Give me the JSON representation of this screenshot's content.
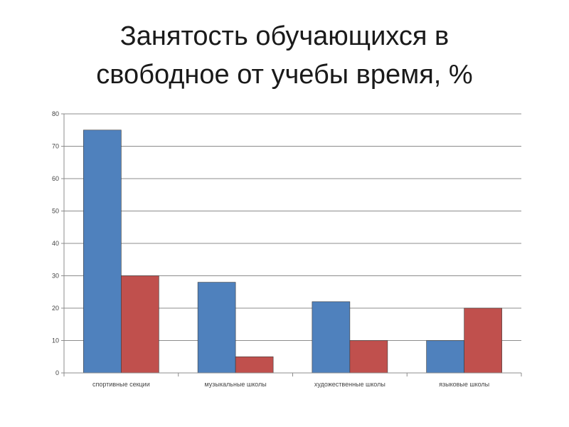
{
  "slide": {
    "title_line1": "Занятость обучающихся в",
    "title_line2": "свободное от учебы время, %"
  },
  "chart_data": {
    "type": "bar",
    "title": "Занятость обучающихся в свободное от учебы время, %",
    "categories": [
      "спортивные секции",
      "музыкальные школы",
      "художественные школы",
      "языковые школы"
    ],
    "series": [
      {
        "values": [
          75,
          28,
          22,
          10
        ],
        "color": "#4F81BD"
      },
      {
        "values": [
          30,
          5,
          10,
          20
        ],
        "color": "#C0504D"
      }
    ],
    "ylim": [
      0,
      80
    ],
    "yticks": [
      0,
      10,
      20,
      30,
      40,
      50,
      60,
      70,
      80
    ],
    "grid": true,
    "legend": "none"
  }
}
